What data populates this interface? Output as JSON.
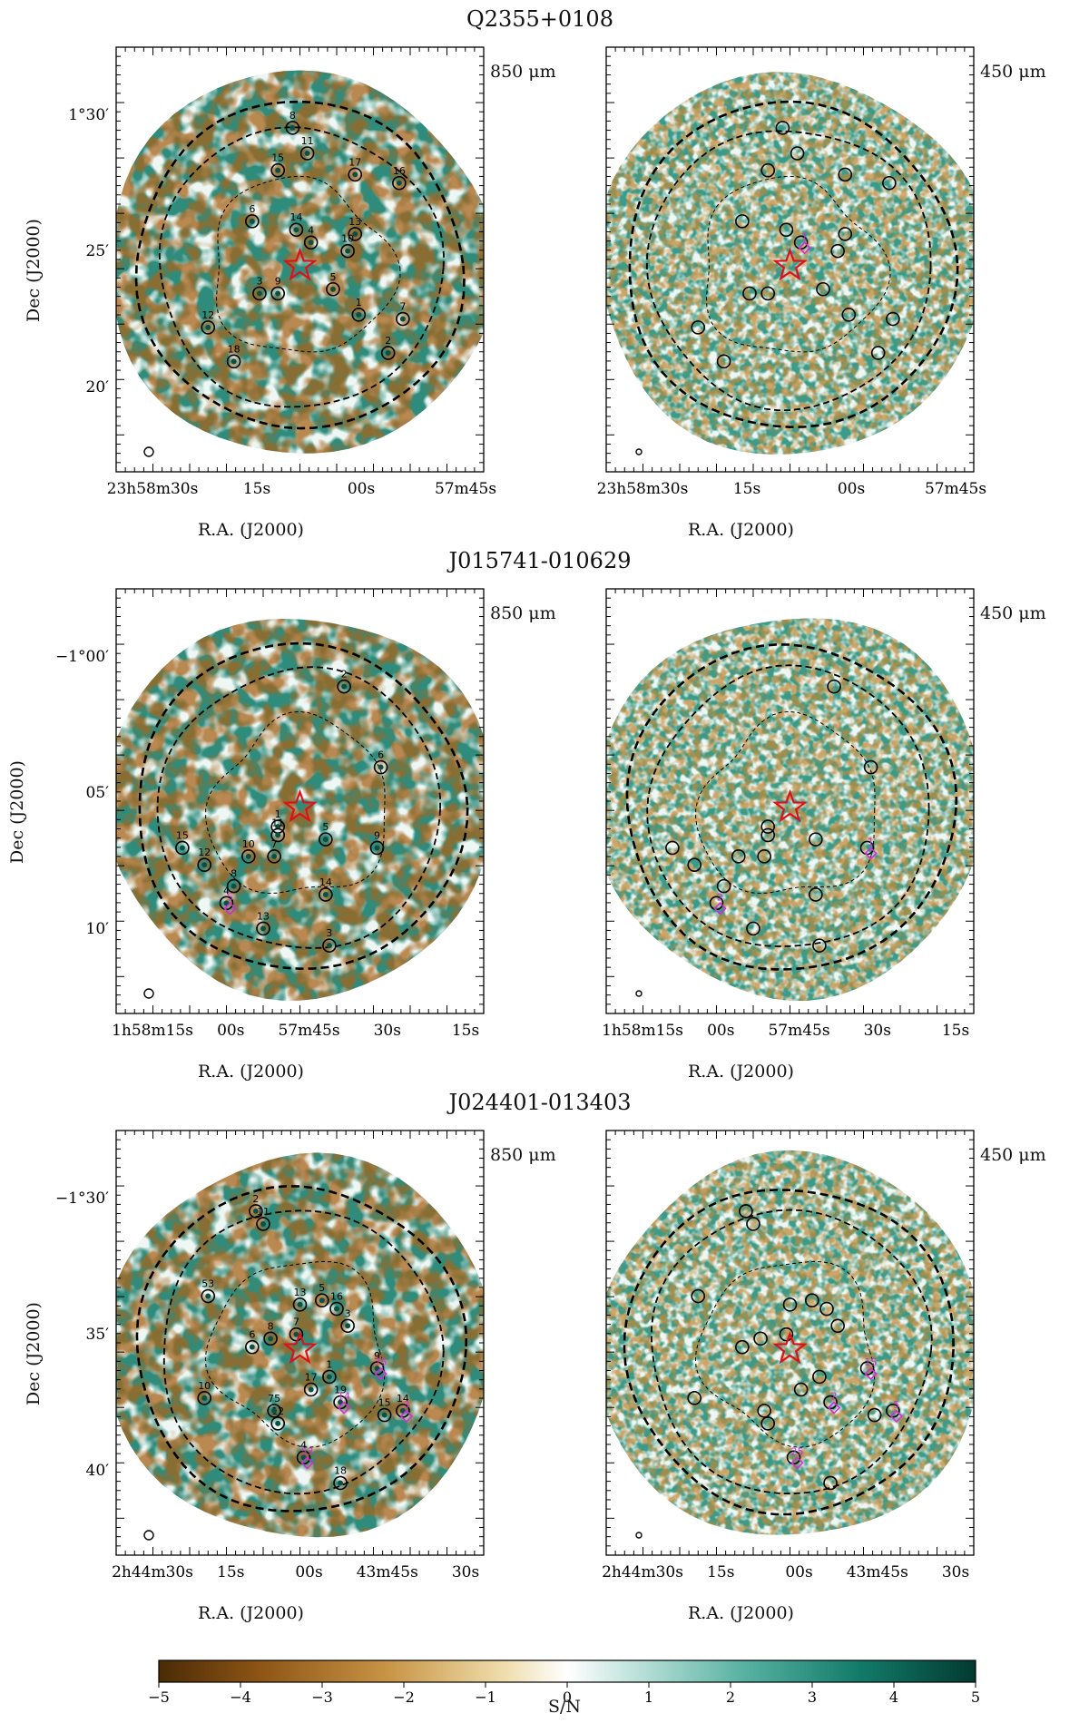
{
  "figure": {
    "colorbar": {
      "label": "S/N",
      "min": -5,
      "max": 5,
      "ticks": [
        -5,
        -4,
        -3,
        -2,
        -1,
        0,
        1,
        2,
        3,
        4,
        5
      ]
    },
    "xlabel": "R.A. (J2000)",
    "ylabel": "Dec (J2000)",
    "bands": [
      "850 μm",
      "450 μm"
    ],
    "fields": [
      {
        "name": "Q2355+0108",
        "ra_ticks": [
          "23h58m30s",
          "15s",
          "00s",
          "57m45s"
        ],
        "dec_ticks": [
          "1°30′",
          "25′",
          "20′"
        ],
        "sources_850": [
          "1",
          "2",
          "3",
          "4",
          "5",
          "6",
          "7",
          "8",
          "9",
          "10",
          "11",
          "12",
          "13",
          "14",
          "15",
          "16",
          "17",
          "18"
        ],
        "diamonds_850": [],
        "diamonds_450": [
          "1"
        ]
      },
      {
        "name": "J015741-010629",
        "ra_ticks": [
          "1h58m15s",
          "00s",
          "57m45s",
          "30s",
          "15s"
        ],
        "dec_ticks": [
          "−1°00′",
          "05′",
          "10′"
        ],
        "sources_850": [
          "1",
          "2",
          "3",
          "4",
          "5",
          "6",
          "7",
          "8",
          "9",
          "10",
          "11",
          "12",
          "13",
          "14",
          "15"
        ],
        "diamonds_850": [
          "5"
        ],
        "diamonds_450": [
          "2",
          "1"
        ]
      },
      {
        "name": "J024401-013403",
        "ra_ticks": [
          "2h44m30s",
          "15s",
          "00s",
          "43m45s",
          "30s"
        ],
        "dec_ticks": [
          "−1°30′",
          "35′",
          "40′"
        ],
        "sources_850": [
          "1",
          "2",
          "3",
          "4",
          "5",
          "6",
          "7",
          "8",
          "9",
          "10",
          "11",
          "12",
          "13",
          "14",
          "15",
          "16",
          "17",
          "18",
          "19",
          "53",
          "75"
        ],
        "diamonds_850": [
          "53",
          "75",
          "3",
          "14"
        ],
        "diamonds_450": [
          "25",
          "15",
          "5",
          "2"
        ]
      }
    ]
  },
  "chart_data": [
    {
      "type": "heatmap",
      "title": "Q2355+0108",
      "panels": [
        "850 μm",
        "450 μm"
      ],
      "xlabel": "R.A. (J2000)",
      "ylabel": "Dec (J2000)",
      "x_ticks": [
        "23h58m30s",
        "15s",
        "00s",
        "57m45s"
      ],
      "y_ticks": [
        "1°30′",
        "25′",
        "20′"
      ],
      "value_range": [
        -5,
        5
      ],
      "value_label": "S/N",
      "sources_850": 18,
      "diamonds_450": 1
    },
    {
      "type": "heatmap",
      "title": "J015741-010629",
      "panels": [
        "850 μm",
        "450 μm"
      ],
      "xlabel": "R.A. (J2000)",
      "ylabel": "Dec (J2000)",
      "x_ticks": [
        "1h58m15s",
        "00s",
        "57m45s",
        "30s",
        "15s"
      ],
      "y_ticks": [
        "−1°00′",
        "05′",
        "10′"
      ],
      "value_range": [
        -5,
        5
      ],
      "value_label": "S/N",
      "sources_850": 15,
      "diamonds_450": 2
    },
    {
      "type": "heatmap",
      "title": "J024401-013403",
      "panels": [
        "850 μm",
        "450 μm"
      ],
      "xlabel": "R.A. (J2000)",
      "ylabel": "Dec (J2000)",
      "x_ticks": [
        "2h44m30s",
        "15s",
        "00s",
        "43m45s",
        "30s"
      ],
      "y_ticks": [
        "−1°30′",
        "35′",
        "40′"
      ],
      "value_range": [
        -5,
        5
      ],
      "value_label": "S/N",
      "sources_850": 21,
      "diamonds_450": 4
    }
  ],
  "colors": {
    "neg": "#4a2b06",
    "mid": "#ffffff",
    "pos": "#023a31",
    "star": "#e0101a",
    "diamond": "#d42bd8"
  }
}
